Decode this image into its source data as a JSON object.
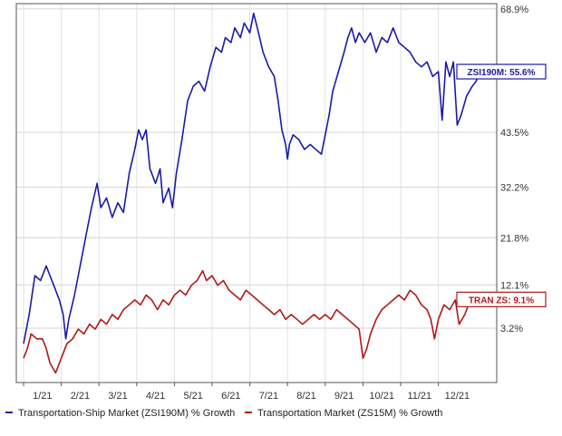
{
  "chart_data": {
    "type": "line",
    "y_ticks": [
      {
        "value": 68.9,
        "label": "68.9%"
      },
      {
        "value": 43.5,
        "label": "43.5%"
      },
      {
        "value": 32.2,
        "label": "32.2%"
      },
      {
        "value": 21.8,
        "label": "21.8%"
      },
      {
        "value": 12.1,
        "label": "12.1%"
      },
      {
        "value": 3.2,
        "label": "3.2%"
      }
    ],
    "x_ticks": [
      "1/21",
      "2/21",
      "3/21",
      "4/21",
      "5/21",
      "6/21",
      "7/21",
      "8/21",
      "9/21",
      "10/21",
      "11/21",
      "12/21"
    ],
    "ylim": [
      -8,
      70
    ],
    "grid": true,
    "legend": "bottom",
    "series": [
      {
        "name": "Transportation-Ship Market (ZSI190M) % Growth",
        "color": "#1a1aa8",
        "callout": "ZSI190M: 55.6%",
        "points": [
          [
            0.0,
            0
          ],
          [
            0.15,
            6
          ],
          [
            0.3,
            14
          ],
          [
            0.45,
            13
          ],
          [
            0.6,
            16
          ],
          [
            0.8,
            12
          ],
          [
            0.95,
            9
          ],
          [
            1.05,
            6
          ],
          [
            1.12,
            1
          ],
          [
            1.2,
            5
          ],
          [
            1.35,
            10
          ],
          [
            1.5,
            16
          ],
          [
            1.65,
            22
          ],
          [
            1.8,
            28
          ],
          [
            1.95,
            33
          ],
          [
            2.05,
            28
          ],
          [
            2.2,
            30
          ],
          [
            2.35,
            26
          ],
          [
            2.5,
            29
          ],
          [
            2.65,
            27
          ],
          [
            2.8,
            35
          ],
          [
            2.95,
            40
          ],
          [
            3.05,
            44
          ],
          [
            3.15,
            42
          ],
          [
            3.25,
            44
          ],
          [
            3.35,
            36
          ],
          [
            3.5,
            33
          ],
          [
            3.62,
            36
          ],
          [
            3.7,
            29
          ],
          [
            3.85,
            32
          ],
          [
            3.95,
            28
          ],
          [
            4.05,
            35
          ],
          [
            4.2,
            42
          ],
          [
            4.35,
            50
          ],
          [
            4.5,
            53
          ],
          [
            4.65,
            54
          ],
          [
            4.8,
            52
          ],
          [
            4.95,
            57
          ],
          [
            5.1,
            61
          ],
          [
            5.25,
            60
          ],
          [
            5.35,
            63
          ],
          [
            5.5,
            62
          ],
          [
            5.6,
            65
          ],
          [
            5.75,
            63
          ],
          [
            5.85,
            66
          ],
          [
            6.0,
            64
          ],
          [
            6.1,
            68
          ],
          [
            6.2,
            65
          ],
          [
            6.35,
            60
          ],
          [
            6.5,
            57
          ],
          [
            6.65,
            55
          ],
          [
            6.75,
            50
          ],
          [
            6.85,
            44
          ],
          [
            6.95,
            41
          ],
          [
            7.0,
            38
          ],
          [
            7.05,
            41
          ],
          [
            7.15,
            43
          ],
          [
            7.3,
            42
          ],
          [
            7.45,
            40
          ],
          [
            7.6,
            41
          ],
          [
            7.75,
            40
          ],
          [
            7.9,
            39
          ],
          [
            8.0,
            43
          ],
          [
            8.1,
            47
          ],
          [
            8.2,
            52
          ],
          [
            8.35,
            56
          ],
          [
            8.5,
            60
          ],
          [
            8.6,
            63
          ],
          [
            8.7,
            65
          ],
          [
            8.8,
            62
          ],
          [
            8.9,
            64
          ],
          [
            9.05,
            62
          ],
          [
            9.2,
            64
          ],
          [
            9.35,
            60
          ],
          [
            9.5,
            63
          ],
          [
            9.65,
            62
          ],
          [
            9.8,
            65
          ],
          [
            9.95,
            62
          ],
          [
            10.1,
            61
          ],
          [
            10.25,
            60
          ],
          [
            10.4,
            58
          ],
          [
            10.55,
            57
          ],
          [
            10.7,
            58
          ],
          [
            10.85,
            55
          ],
          [
            11.0,
            56
          ],
          [
            11.1,
            46
          ],
          [
            11.2,
            58
          ],
          [
            11.3,
            55
          ],
          [
            11.4,
            58
          ],
          [
            11.5,
            45
          ],
          [
            11.6,
            47
          ],
          [
            11.75,
            51
          ],
          [
            11.9,
            53
          ],
          [
            12.0,
            54
          ],
          [
            12.1,
            56
          ]
        ]
      },
      {
        "name": "Transportation Market (ZS15M) % Growth",
        "color": "#b01818",
        "callout": "TRAN ZS: 9.1%",
        "points": [
          [
            0.0,
            -3
          ],
          [
            0.1,
            -1
          ],
          [
            0.2,
            2
          ],
          [
            0.35,
            1
          ],
          [
            0.5,
            1
          ],
          [
            0.6,
            -1
          ],
          [
            0.7,
            -4
          ],
          [
            0.85,
            -6
          ],
          [
            0.95,
            -4
          ],
          [
            1.05,
            -2
          ],
          [
            1.15,
            0
          ],
          [
            1.3,
            1
          ],
          [
            1.45,
            3
          ],
          [
            1.6,
            2
          ],
          [
            1.75,
            4
          ],
          [
            1.9,
            3
          ],
          [
            2.05,
            5
          ],
          [
            2.2,
            4
          ],
          [
            2.35,
            6
          ],
          [
            2.5,
            5
          ],
          [
            2.65,
            7
          ],
          [
            2.8,
            8
          ],
          [
            2.95,
            9
          ],
          [
            3.1,
            8
          ],
          [
            3.25,
            10
          ],
          [
            3.4,
            9
          ],
          [
            3.55,
            7
          ],
          [
            3.7,
            9
          ],
          [
            3.85,
            8
          ],
          [
            4.0,
            10
          ],
          [
            4.15,
            11
          ],
          [
            4.3,
            10
          ],
          [
            4.45,
            12
          ],
          [
            4.6,
            13
          ],
          [
            4.75,
            15
          ],
          [
            4.85,
            13
          ],
          [
            5.0,
            14
          ],
          [
            5.15,
            12
          ],
          [
            5.3,
            13
          ],
          [
            5.45,
            11
          ],
          [
            5.6,
            10
          ],
          [
            5.75,
            9
          ],
          [
            5.9,
            11
          ],
          [
            6.05,
            10
          ],
          [
            6.2,
            9
          ],
          [
            6.35,
            8
          ],
          [
            6.5,
            7
          ],
          [
            6.65,
            6
          ],
          [
            6.8,
            7
          ],
          [
            6.95,
            5
          ],
          [
            7.1,
            6
          ],
          [
            7.25,
            5
          ],
          [
            7.4,
            4
          ],
          [
            7.55,
            5
          ],
          [
            7.7,
            6
          ],
          [
            7.85,
            5
          ],
          [
            8.0,
            6
          ],
          [
            8.15,
            5
          ],
          [
            8.3,
            7
          ],
          [
            8.45,
            6
          ],
          [
            8.6,
            5
          ],
          [
            8.75,
            4
          ],
          [
            8.9,
            3
          ],
          [
            9.0,
            -3
          ],
          [
            9.1,
            -1
          ],
          [
            9.2,
            2
          ],
          [
            9.35,
            5
          ],
          [
            9.5,
            7
          ],
          [
            9.65,
            8
          ],
          [
            9.8,
            9
          ],
          [
            9.95,
            10
          ],
          [
            10.1,
            9
          ],
          [
            10.25,
            11
          ],
          [
            10.4,
            10
          ],
          [
            10.55,
            8
          ],
          [
            10.7,
            7
          ],
          [
            10.8,
            5
          ],
          [
            10.9,
            1
          ],
          [
            11.0,
            5
          ],
          [
            11.15,
            8
          ],
          [
            11.3,
            7
          ],
          [
            11.45,
            9
          ],
          [
            11.55,
            4
          ],
          [
            11.7,
            6
          ],
          [
            11.85,
            9
          ],
          [
            12.0,
            8
          ],
          [
            12.1,
            9.1
          ]
        ]
      }
    ]
  }
}
